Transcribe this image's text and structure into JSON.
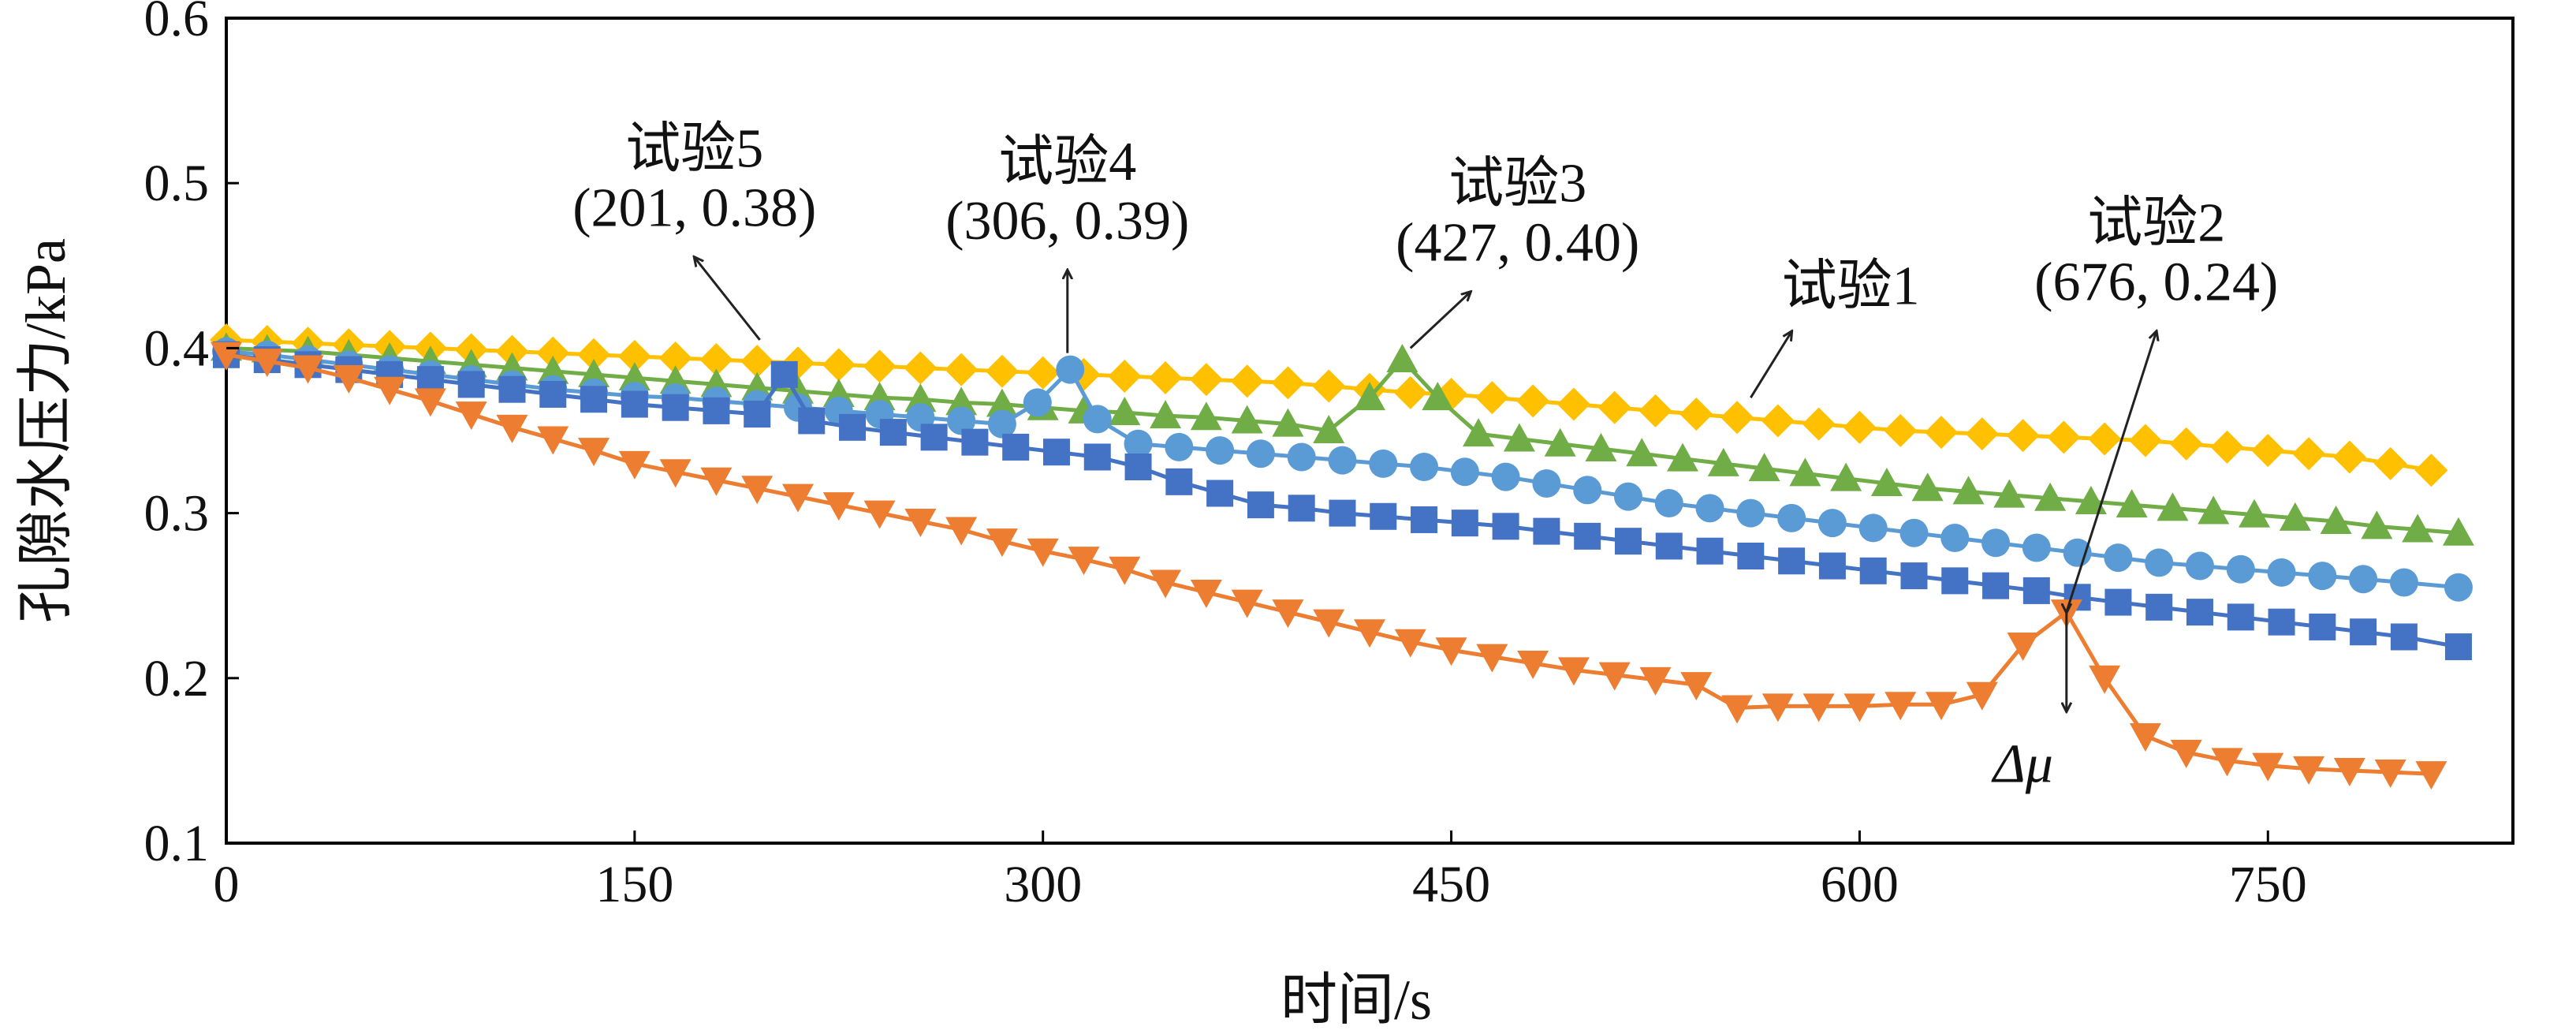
{
  "chart_data": {
    "type": "line",
    "xlabel": "时间/s",
    "ylabel": "孔隙水压力/kPa",
    "xlim": [
      0,
      840
    ],
    "ylim": [
      0.1,
      0.6
    ],
    "xticks": [
      0,
      150,
      300,
      450,
      600,
      750
    ],
    "yticks": [
      0.1,
      0.2,
      0.3,
      0.4,
      0.5,
      0.6
    ],
    "xtick_labels": [
      "0",
      "150",
      "300",
      "450",
      "600",
      "750"
    ],
    "ytick_labels": [
      "0.1",
      "0.2",
      "0.3",
      "0.4",
      "0.5",
      "0.6"
    ],
    "grid": false,
    "series": [
      {
        "name": "试验1",
        "color": "#FFC000",
        "marker": "diamond",
        "x": [
          0,
          15,
          30,
          45,
          60,
          75,
          90,
          105,
          120,
          135,
          150,
          165,
          180,
          195,
          210,
          225,
          240,
          255,
          270,
          285,
          300,
          315,
          330,
          345,
          360,
          375,
          390,
          405,
          420,
          435,
          450,
          465,
          480,
          495,
          510,
          525,
          540,
          555,
          570,
          585,
          600,
          615,
          630,
          645,
          660,
          675,
          690,
          705,
          720,
          735,
          750,
          765,
          780,
          795,
          810
        ],
        "y": [
          0.405,
          0.404,
          0.403,
          0.402,
          0.401,
          0.4,
          0.399,
          0.398,
          0.397,
          0.396,
          0.395,
          0.394,
          0.393,
          0.392,
          0.391,
          0.39,
          0.389,
          0.388,
          0.387,
          0.386,
          0.385,
          0.384,
          0.383,
          0.382,
          0.381,
          0.38,
          0.379,
          0.377,
          0.375,
          0.373,
          0.372,
          0.37,
          0.368,
          0.366,
          0.364,
          0.362,
          0.36,
          0.358,
          0.356,
          0.354,
          0.352,
          0.35,
          0.349,
          0.348,
          0.347,
          0.346,
          0.345,
          0.344,
          0.342,
          0.34,
          0.338,
          0.336,
          0.334,
          0.33,
          0.326
        ]
      },
      {
        "name": "试验3",
        "color": "#70AD47",
        "marker": "triangle-up",
        "x": [
          0,
          15,
          30,
          45,
          60,
          75,
          90,
          105,
          120,
          135,
          150,
          165,
          180,
          195,
          210,
          225,
          240,
          255,
          270,
          285,
          300,
          315,
          330,
          345,
          360,
          375,
          390,
          405,
          420,
          432,
          445,
          460,
          475,
          490,
          505,
          520,
          535,
          550,
          565,
          580,
          595,
          610,
          625,
          640,
          655,
          670,
          685,
          700,
          715,
          730,
          745,
          760,
          775,
          790,
          805,
          820
        ],
        "y": [
          0.4,
          0.399,
          0.398,
          0.396,
          0.394,
          0.392,
          0.39,
          0.388,
          0.386,
          0.384,
          0.382,
          0.38,
          0.378,
          0.376,
          0.374,
          0.372,
          0.37,
          0.369,
          0.367,
          0.366,
          0.364,
          0.362,
          0.361,
          0.359,
          0.358,
          0.356,
          0.354,
          0.35,
          0.37,
          0.393,
          0.37,
          0.348,
          0.345,
          0.342,
          0.339,
          0.336,
          0.333,
          0.33,
          0.327,
          0.324,
          0.321,
          0.318,
          0.315,
          0.313,
          0.311,
          0.309,
          0.307,
          0.305,
          0.303,
          0.301,
          0.299,
          0.297,
          0.295,
          0.292,
          0.29,
          0.288
        ]
      },
      {
        "name": "试验4",
        "color": "#5B9BD5",
        "marker": "circle",
        "x": [
          0,
          15,
          30,
          45,
          60,
          75,
          90,
          105,
          120,
          135,
          150,
          165,
          180,
          195,
          210,
          225,
          240,
          255,
          270,
          285,
          298,
          310,
          320,
          335,
          350,
          365,
          380,
          395,
          410,
          425,
          440,
          455,
          470,
          485,
          500,
          515,
          530,
          545,
          560,
          575,
          590,
          605,
          620,
          635,
          650,
          665,
          680,
          695,
          710,
          725,
          740,
          755,
          770,
          785,
          800,
          820
        ],
        "y": [
          0.398,
          0.396,
          0.393,
          0.39,
          0.387,
          0.384,
          0.381,
          0.378,
          0.375,
          0.373,
          0.371,
          0.37,
          0.368,
          0.366,
          0.364,
          0.362,
          0.36,
          0.358,
          0.356,
          0.354,
          0.367,
          0.387,
          0.357,
          0.342,
          0.34,
          0.338,
          0.336,
          0.334,
          0.332,
          0.33,
          0.328,
          0.325,
          0.322,
          0.318,
          0.314,
          0.31,
          0.306,
          0.303,
          0.3,
          0.297,
          0.294,
          0.291,
          0.288,
          0.285,
          0.282,
          0.279,
          0.276,
          0.273,
          0.27,
          0.268,
          0.266,
          0.264,
          0.262,
          0.26,
          0.258,
          0.255
        ]
      },
      {
        "name": "试验5",
        "color": "#4472C4",
        "marker": "square",
        "x": [
          0,
          15,
          30,
          45,
          60,
          75,
          90,
          105,
          120,
          135,
          150,
          165,
          180,
          195,
          205,
          215,
          230,
          245,
          260,
          275,
          290,
          305,
          320,
          335,
          350,
          365,
          380,
          395,
          410,
          425,
          440,
          455,
          470,
          485,
          500,
          515,
          530,
          545,
          560,
          575,
          590,
          605,
          620,
          635,
          650,
          665,
          680,
          695,
          710,
          725,
          740,
          755,
          770,
          785,
          800,
          820
        ],
        "y": [
          0.396,
          0.393,
          0.39,
          0.387,
          0.384,
          0.381,
          0.378,
          0.375,
          0.372,
          0.369,
          0.366,
          0.364,
          0.362,
          0.36,
          0.384,
          0.356,
          0.352,
          0.349,
          0.346,
          0.343,
          0.34,
          0.337,
          0.334,
          0.328,
          0.319,
          0.312,
          0.305,
          0.303,
          0.3,
          0.298,
          0.296,
          0.294,
          0.292,
          0.289,
          0.286,
          0.283,
          0.28,
          0.277,
          0.274,
          0.271,
          0.268,
          0.265,
          0.262,
          0.259,
          0.256,
          0.253,
          0.249,
          0.246,
          0.243,
          0.24,
          0.237,
          0.234,
          0.231,
          0.228,
          0.225,
          0.219
        ]
      },
      {
        "name": "试验2",
        "color": "#ED7D31",
        "marker": "triangle-down",
        "x": [
          0,
          15,
          30,
          45,
          60,
          75,
          90,
          105,
          120,
          135,
          150,
          165,
          180,
          195,
          210,
          225,
          240,
          255,
          270,
          285,
          300,
          315,
          330,
          345,
          360,
          375,
          390,
          405,
          420,
          435,
          450,
          465,
          480,
          495,
          510,
          525,
          540,
          555,
          570,
          585,
          600,
          615,
          630,
          645,
          660,
          676,
          690,
          705,
          720,
          735,
          750,
          765,
          780,
          795,
          810
        ],
        "y": [
          0.396,
          0.392,
          0.388,
          0.382,
          0.375,
          0.368,
          0.36,
          0.352,
          0.345,
          0.338,
          0.33,
          0.325,
          0.32,
          0.315,
          0.31,
          0.305,
          0.3,
          0.295,
          0.29,
          0.283,
          0.277,
          0.272,
          0.266,
          0.258,
          0.252,
          0.246,
          0.24,
          0.234,
          0.228,
          0.222,
          0.217,
          0.213,
          0.209,
          0.205,
          0.202,
          0.199,
          0.196,
          0.182,
          0.183,
          0.183,
          0.183,
          0.184,
          0.184,
          0.19,
          0.22,
          0.24,
          0.2,
          0.165,
          0.155,
          0.15,
          0.147,
          0.145,
          0.144,
          0.143,
          0.142
        ]
      }
    ],
    "annotations": [
      {
        "label": "试验5",
        "coord": "(201, 0.38)",
        "from": [
          196,
          0.405
        ],
        "to": [
          172,
          0.455
        ]
      },
      {
        "label": "试验4",
        "coord": "(306, 0.39)",
        "from": [
          309,
          0.397
        ],
        "to": [
          309,
          0.447
        ]
      },
      {
        "label": "试验3",
        "coord": "(427, 0.40)",
        "from": [
          435,
          0.4
        ],
        "to": [
          457,
          0.434
        ]
      },
      {
        "label": "试验1",
        "coord": "",
        "from": [
          560,
          0.37
        ],
        "to": [
          575,
          0.41
        ]
      },
      {
        "label": "试验2",
        "coord": "(676, 0.24)",
        "from": [
          676,
          0.24
        ],
        "to": [
          709,
          0.41
        ]
      }
    ],
    "delta_label": "Δμ",
    "delta_arrow": {
      "x": 676,
      "from": 0.24,
      "to": 0.18
    }
  }
}
